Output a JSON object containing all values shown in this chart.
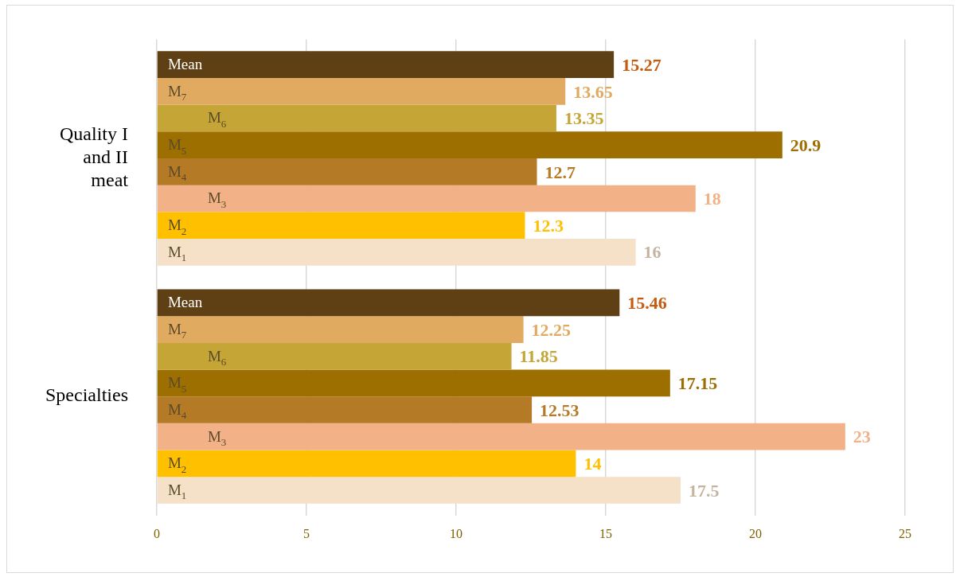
{
  "chart_data": {
    "type": "bar",
    "orientation": "horizontal",
    "categories": [
      "Quality I and II meat",
      "Specialties"
    ],
    "series": [
      {
        "name": "Mean",
        "color": "#5f3f14",
        "values": [
          15.27,
          15.46
        ]
      },
      {
        "name": "M$_{7}$",
        "color": "#e0aa60",
        "values": [
          13.65,
          12.25
        ]
      },
      {
        "name": "M$_{6}$",
        "color": "#c4a535",
        "values": [
          13.35,
          11.85
        ]
      },
      {
        "name": "M$_{5}$",
        "color": "#9c6f00",
        "values": [
          20.9,
          17.15
        ]
      },
      {
        "name": "M$_{4}$",
        "color": "#b57a25",
        "values": [
          12.7,
          12.53
        ]
      },
      {
        "name": "M$_{3}$",
        "color": "#f2b186",
        "values": [
          18,
          23
        ]
      },
      {
        "name": "M$_{2}$",
        "color": "#ffc000",
        "values": [
          12.3,
          14
        ]
      },
      {
        "name": "M$_{1}$",
        "color": "#f5e1c8",
        "values": [
          16,
          17.5
        ]
      }
    ],
    "xlim": [
      0,
      25
    ],
    "xticks": [
      0,
      5,
      10,
      15,
      20,
      25
    ],
    "grid": "x",
    "data_labels": true,
    "legend": false
  }
}
